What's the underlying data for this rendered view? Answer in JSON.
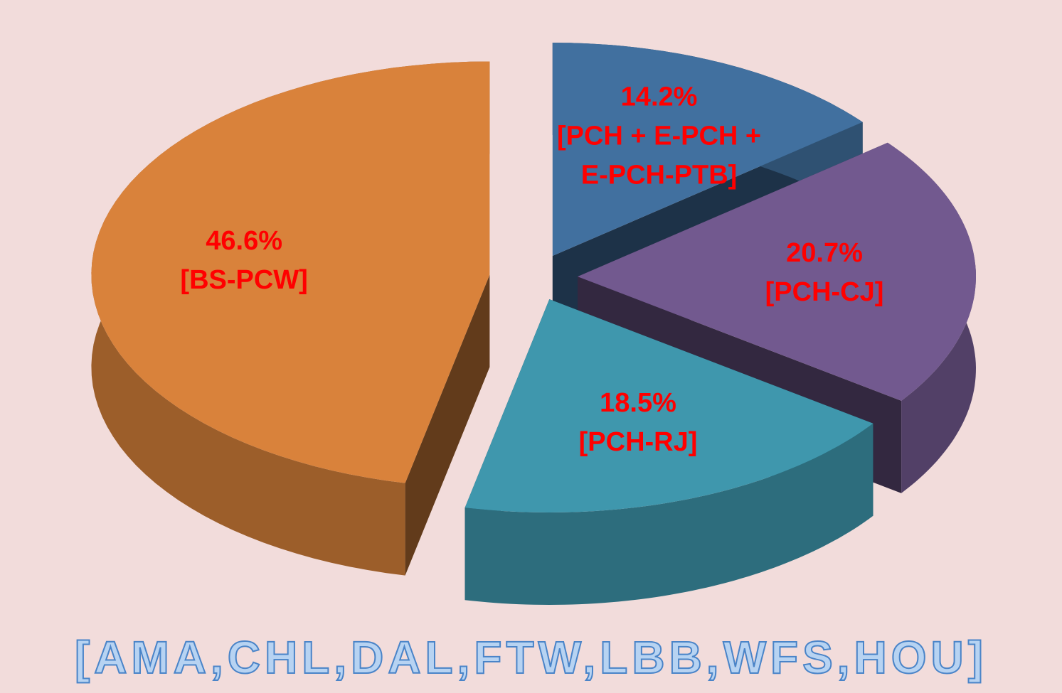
{
  "chart_data": {
    "type": "pie",
    "title": "[AMA,CHL,DAL,FTW,LBB,WFS,HOU]",
    "categories": [
      "[PCH + E-PCH + E-PCH-PTB]",
      "[PCH-CJ]",
      "[PCH-RJ]",
      "[BS-PCW]"
    ],
    "values": [
      14.2,
      20.7,
      18.5,
      46.6
    ],
    "value_labels": [
      "14.2%",
      "20.7%",
      "18.5%",
      "46.6%"
    ],
    "colors": [
      "#41709f",
      "#72598f",
      "#3f97ad",
      "#d9823b"
    ]
  }
}
